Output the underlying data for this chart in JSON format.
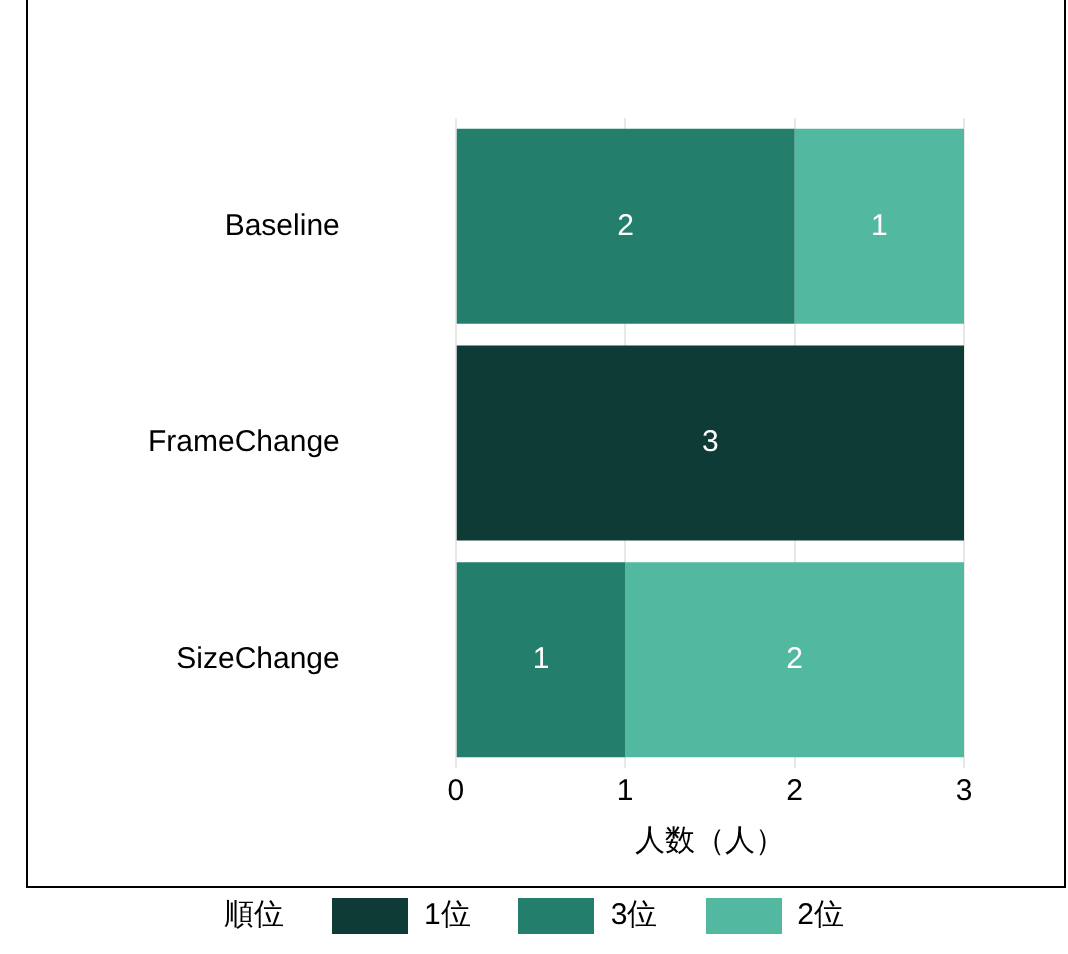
{
  "chart_data": {
    "type": "bar",
    "orientation": "horizontal",
    "stacked": true,
    "categories": [
      "Baseline",
      "FrameChange",
      "SizeChange"
    ],
    "series": [
      {
        "name": "1位",
        "color": "#0e3b35",
        "values": [
          0,
          3,
          0
        ],
        "value_labels": [
          null,
          "3",
          null
        ]
      },
      {
        "name": "3位",
        "color": "#237f6b",
        "values": [
          2,
          0,
          1
        ],
        "value_labels": [
          "2",
          null,
          "1"
        ]
      },
      {
        "name": "2位",
        "color": "#52b8a0",
        "values": [
          1,
          0,
          2
        ],
        "value_labels": [
          "1",
          null,
          "2"
        ]
      }
    ],
    "xlabel": "人数（人）",
    "legend_title": "順位",
    "legend": "bottom",
    "grid": "x",
    "xlim": [
      0,
      3
    ],
    "xticks": [
      0,
      1,
      2,
      3
    ]
  }
}
